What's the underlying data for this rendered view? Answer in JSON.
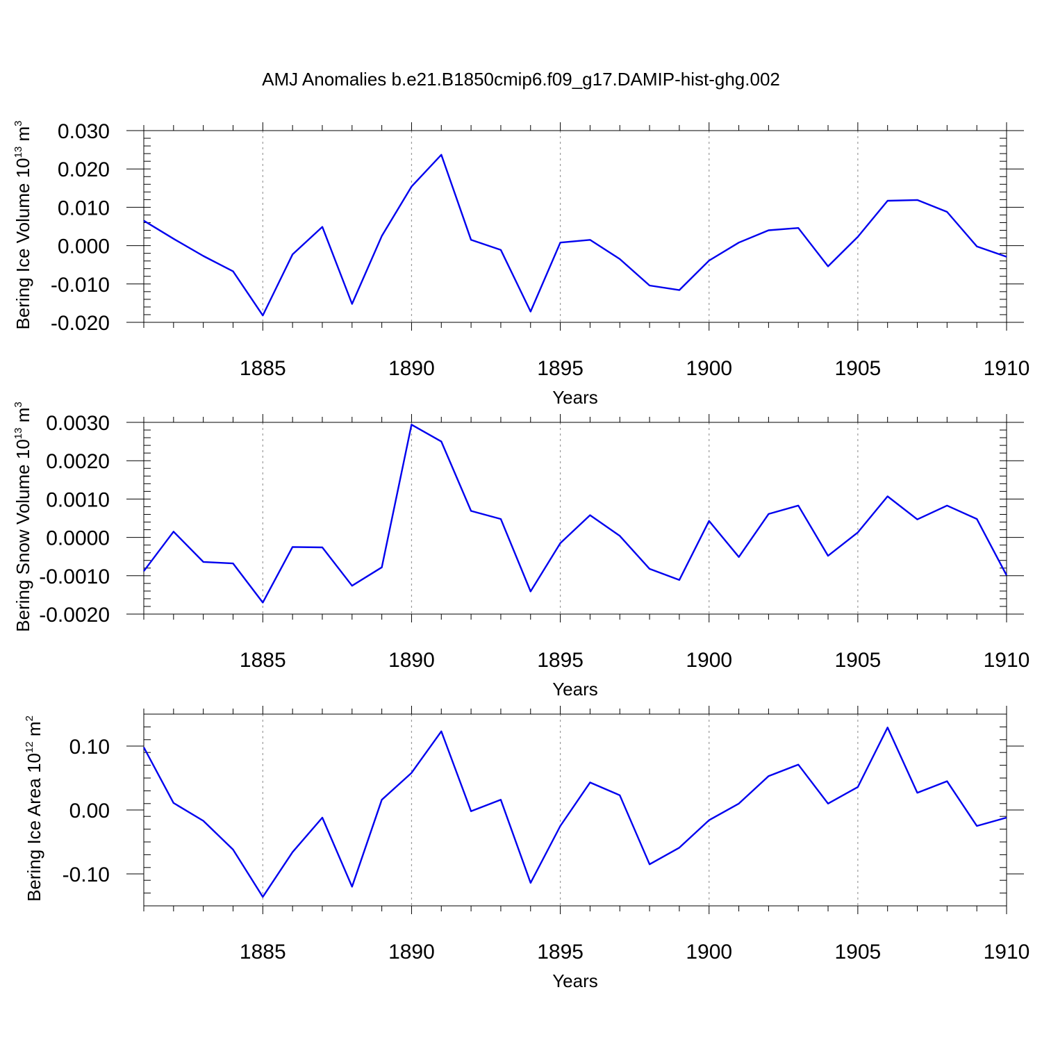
{
  "title": "AMJ Anomalies b.e21.B1850cmip6.f09_g17.DAMIP-hist-ghg.002",
  "colors": {
    "series": "#0000ee",
    "grid": "#999999",
    "axis": "#000000"
  },
  "chart_data": [
    {
      "type": "line",
      "ylabel": "Bering Ice Volume 10",
      "ylabel_sup_exp": "13",
      "ylabel_unit": " m",
      "ylabel_sup_unit": "3",
      "xlabel": "Years",
      "xlim": [
        1881,
        1910
      ],
      "ylim": [
        -0.02,
        0.03
      ],
      "yticks": [
        -0.02,
        -0.01,
        0.0,
        0.01,
        0.02,
        0.03
      ],
      "ytick_labels": [
        "-0.020",
        "-0.010",
        "0.000",
        "0.010",
        "0.020",
        "0.030"
      ],
      "yminor_step": 0.002,
      "xticks": [
        1885,
        1890,
        1895,
        1900,
        1905,
        1910
      ],
      "xtick_labels": [
        "1885",
        "1890",
        "1895",
        "1900",
        "1905",
        "1910"
      ],
      "grid_x": [
        1885,
        1890,
        1895,
        1900,
        1905
      ],
      "series": [
        {
          "name": "Bering Ice Volume",
          "x": [
            1881,
            1882,
            1883,
            1884,
            1885,
            1886,
            1887,
            1888,
            1889,
            1890,
            1891,
            1892,
            1893,
            1894,
            1895,
            1896,
            1897,
            1898,
            1899,
            1900,
            1901,
            1902,
            1903,
            1904,
            1905,
            1906,
            1907,
            1908,
            1909,
            1910
          ],
          "values": [
            0.0065,
            0.0018,
            -0.0027,
            -0.0067,
            -0.0182,
            -0.0023,
            0.0049,
            -0.0152,
            0.0025,
            0.0154,
            0.0237,
            0.0015,
            -0.0011,
            -0.0172,
            0.0008,
            0.0015,
            -0.0035,
            -0.0104,
            -0.0116,
            -0.0039,
            0.0008,
            0.004,
            0.0046,
            -0.0054,
            0.0023,
            0.0117,
            0.0119,
            0.0088,
            -0.0002,
            -0.0029
          ]
        }
      ]
    },
    {
      "type": "line",
      "ylabel": "Bering Snow Volume 10",
      "ylabel_sup_exp": "13",
      "ylabel_unit": " m",
      "ylabel_sup_unit": "3",
      "xlabel": "Years",
      "xlim": [
        1881,
        1910
      ],
      "ylim": [
        -0.002,
        0.003
      ],
      "yticks": [
        -0.002,
        -0.001,
        0.0,
        0.001,
        0.002,
        0.003
      ],
      "ytick_labels": [
        "-0.0020",
        "-0.0010",
        "0.0000",
        "0.0010",
        "0.0020",
        "0.0030"
      ],
      "yminor_step": 0.0002,
      "xticks": [
        1885,
        1890,
        1895,
        1900,
        1905,
        1910
      ],
      "xtick_labels": [
        "1885",
        "1890",
        "1895",
        "1900",
        "1905",
        "1910"
      ],
      "grid_x": [
        1885,
        1890,
        1895,
        1900,
        1905
      ],
      "series": [
        {
          "name": "Bering Snow Volume",
          "x": [
            1881,
            1882,
            1883,
            1884,
            1885,
            1886,
            1887,
            1888,
            1889,
            1890,
            1891,
            1892,
            1893,
            1894,
            1895,
            1896,
            1897,
            1898,
            1899,
            1900,
            1901,
            1902,
            1903,
            1904,
            1905,
            1906,
            1907,
            1908,
            1909,
            1910
          ],
          "values": [
            -0.00088,
            0.00015,
            -0.00064,
            -0.00068,
            -0.0017,
            -0.00025,
            -0.00026,
            -0.00126,
            -0.00078,
            0.00294,
            0.0025,
            0.00069,
            0.00048,
            -0.00141,
            -0.00015,
            0.00058,
            4e-05,
            -0.00082,
            -0.00111,
            0.00043,
            -0.00051,
            0.00061,
            0.00083,
            -0.00048,
            0.00013,
            0.00107,
            0.00047,
            0.00083,
            0.00048,
            -0.00099
          ]
        }
      ]
    },
    {
      "type": "line",
      "ylabel": "Bering Ice Area 10",
      "ylabel_sup_exp": "12",
      "ylabel_unit": " m",
      "ylabel_sup_unit": "2",
      "xlabel": "Years",
      "xlim": [
        1881,
        1910
      ],
      "ylim": [
        -0.15,
        0.15
      ],
      "yticks": [
        -0.1,
        0.0,
        0.1
      ],
      "ytick_labels": [
        "-0.10",
        "0.00",
        "0.10"
      ],
      "yminor_step": 0.02,
      "xticks": [
        1885,
        1890,
        1895,
        1900,
        1905,
        1910
      ],
      "xtick_labels": [
        "1885",
        "1890",
        "1895",
        "1900",
        "1905",
        "1910"
      ],
      "grid_x": [
        1885,
        1890,
        1895,
        1900,
        1905
      ],
      "series": [
        {
          "name": "Bering Ice Area",
          "x": [
            1881,
            1882,
            1883,
            1884,
            1885,
            1886,
            1887,
            1888,
            1889,
            1890,
            1891,
            1892,
            1893,
            1894,
            1895,
            1896,
            1897,
            1898,
            1899,
            1900,
            1901,
            1902,
            1903,
            1904,
            1905,
            1906,
            1907,
            1908,
            1909,
            1910
          ],
          "values": [
            0.098,
            0.011,
            -0.017,
            -0.062,
            -0.136,
            -0.066,
            -0.012,
            -0.12,
            0.016,
            0.058,
            0.123,
            -0.002,
            0.016,
            -0.114,
            -0.025,
            0.043,
            0.023,
            -0.085,
            -0.059,
            -0.016,
            0.01,
            0.053,
            0.071,
            0.01,
            0.036,
            0.129,
            0.027,
            0.045,
            -0.025,
            -0.012
          ]
        }
      ]
    }
  ]
}
